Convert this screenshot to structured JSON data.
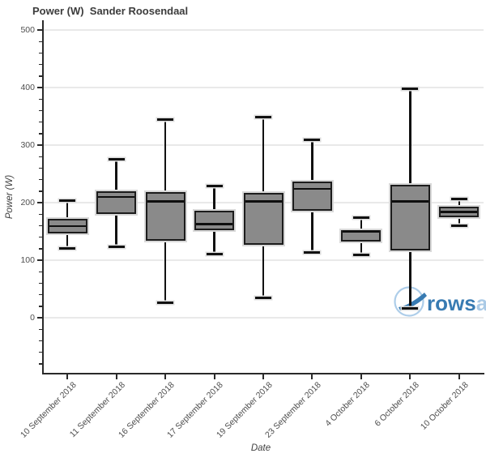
{
  "chart_data": {
    "type": "box",
    "title": "Power (W)  Sander Roosendaal",
    "xlabel": "Date",
    "ylabel": "Power (W)",
    "ylim": [
      -97,
      517
    ],
    "ytick_major": [
      0,
      100,
      200,
      300,
      400,
      500
    ],
    "ytick_minor_step": 20,
    "grid": true,
    "legend": "none",
    "categories": [
      "10 September 2018",
      "11 September 2018",
      "16 September 2018",
      "17 September 2018",
      "19 September 2018",
      "23 September 2018",
      "4 October 2018",
      "6 October 2018",
      "10 October 2018"
    ],
    "series": [
      {
        "name": "Power (W)",
        "boxes": [
          {
            "category": "10 September 2018",
            "low": 120,
            "q1": 148,
            "median": 159,
            "q3": 170,
            "high": 204
          },
          {
            "category": "11 September 2018",
            "low": 123,
            "q1": 182,
            "median": 210,
            "q3": 218,
            "high": 276
          },
          {
            "category": "16 September 2018",
            "low": 26,
            "q1": 135,
            "median": 202,
            "q3": 217,
            "high": 345
          },
          {
            "category": "17 September 2018",
            "low": 111,
            "q1": 154,
            "median": 163,
            "q3": 184,
            "high": 229
          },
          {
            "category": "19 September 2018",
            "low": 34,
            "q1": 129,
            "median": 202,
            "q3": 216,
            "high": 349
          },
          {
            "category": "23 September 2018",
            "low": 113,
            "q1": 187,
            "median": 224,
            "q3": 235,
            "high": 309
          },
          {
            "category": "4 October 2018",
            "low": 110,
            "q1": 134,
            "median": 150,
            "q3": 151,
            "high": 174
          },
          {
            "category": "6 October 2018",
            "low": 17,
            "q1": 118,
            "median": 202,
            "q3": 230,
            "high": 398
          },
          {
            "category": "10 October 2018",
            "low": 160,
            "q1": 176,
            "median": 184,
            "q3": 191,
            "high": 206
          }
        ]
      }
    ],
    "colors": {
      "box_fill": "#8a8a8a",
      "box_border": "#1c1c1c",
      "whisker": "#111111",
      "median": "#0f0f0f",
      "grid": "#e9e9e9",
      "axis": "#2a2a2a",
      "tick_label": "#4f4f4f",
      "title": "#3c3c3c",
      "background": "#ffffff"
    }
  },
  "watermark": {
    "text_primary": "rows",
    "text_secondary": "ar",
    "text_primary_color": "#2e74ae",
    "text_secondary_color": "#a6c8e5",
    "circle_color": "#a9cbe8",
    "swoosh_color": "#2e74ae"
  }
}
